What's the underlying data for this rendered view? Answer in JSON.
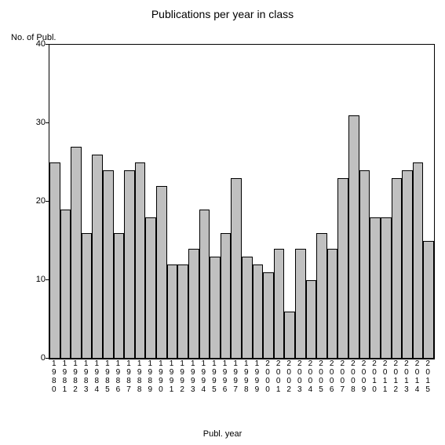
{
  "chart": {
    "type": "bar",
    "title": "Publications per year in class",
    "title_fontsize": 14,
    "y_axis_label": "No. of Publ.",
    "x_axis_label": "Publ. year",
    "label_fontsize": 11,
    "ylim": [
      0,
      40
    ],
    "yticks": [
      0,
      10,
      20,
      30,
      40
    ],
    "background_color": "#ffffff",
    "bar_color": "#c0c0c0",
    "bar_border_color": "#000000",
    "axis_color": "#000000",
    "categories": [
      "1980",
      "1981",
      "1982",
      "1983",
      "1984",
      "1985",
      "1986",
      "1987",
      "1988",
      "1989",
      "1990",
      "1991",
      "1992",
      "1993",
      "1994",
      "1995",
      "1996",
      "1997",
      "1998",
      "1999",
      "2000",
      "2001",
      "2002",
      "2003",
      "2004",
      "2005",
      "2006",
      "2007",
      "2008",
      "2009",
      "2010",
      "2011",
      "2012",
      "2013",
      "2014",
      "2015"
    ],
    "values": [
      25,
      19,
      27,
      16,
      26,
      24,
      16,
      24,
      25,
      18,
      22,
      12,
      12,
      14,
      19,
      13,
      16,
      23,
      13,
      12,
      11,
      14,
      6,
      14,
      10,
      16,
      14,
      23,
      31,
      24,
      18,
      18,
      23,
      24,
      25,
      15
    ]
  }
}
